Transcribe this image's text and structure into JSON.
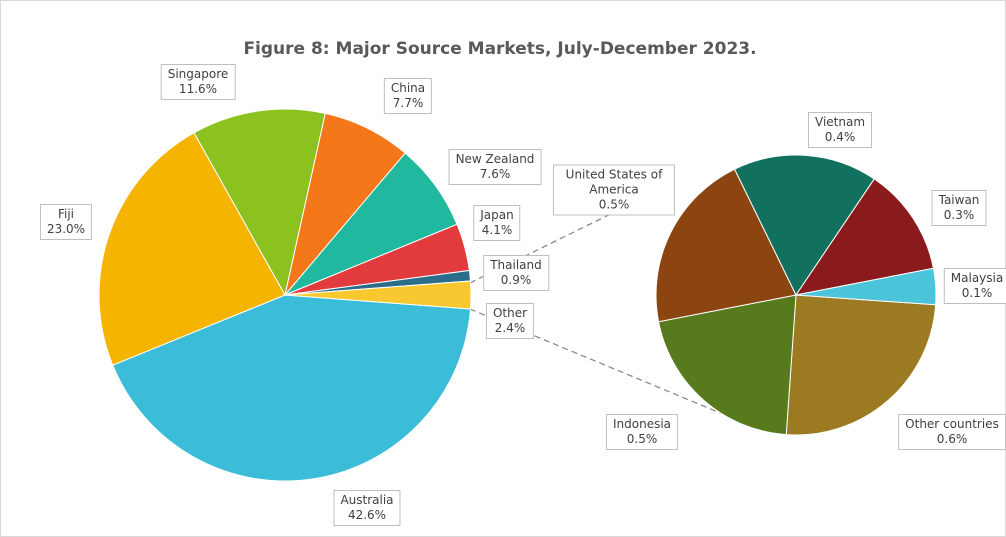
{
  "chart_data": [
    {
      "type": "pie",
      "title": "Figure 8: Major Source Markets, July-December 2023.",
      "categories": [
        "Australia",
        "Fiji",
        "Singapore",
        "China",
        "New Zealand",
        "Japan",
        "Thailand",
        "Other"
      ],
      "values": [
        42.6,
        23.0,
        11.6,
        7.7,
        7.6,
        4.1,
        0.9,
        2.4
      ],
      "value_labels": [
        "42.6%",
        "23.0%",
        "11.6%",
        "7.7%",
        "7.6%",
        "4.1%",
        "0.9%",
        "2.4%"
      ],
      "colors": [
        "#3bbcd9",
        "#f5b400",
        "#8cc220",
        "#f4771a",
        "#20b9a0",
        "#e23b3e",
        "#2a6e8c",
        "#f8c830"
      ]
    },
    {
      "type": "pie",
      "categories": [
        "Other countries",
        "Indonesia",
        "United States of America",
        "Vietnam",
        "Taiwan",
        "Malaysia"
      ],
      "values": [
        0.6,
        0.5,
        0.5,
        0.4,
        0.3,
        0.1
      ],
      "value_labels": [
        "0.6%",
        "0.5%",
        "0.5%",
        "0.4%",
        "0.3%",
        "0.1%"
      ],
      "colors": [
        "#9c7a22",
        "#567a1c",
        "#8c4410",
        "#12705f",
        "#8a1a1c",
        "#4cc4da"
      ]
    }
  ]
}
